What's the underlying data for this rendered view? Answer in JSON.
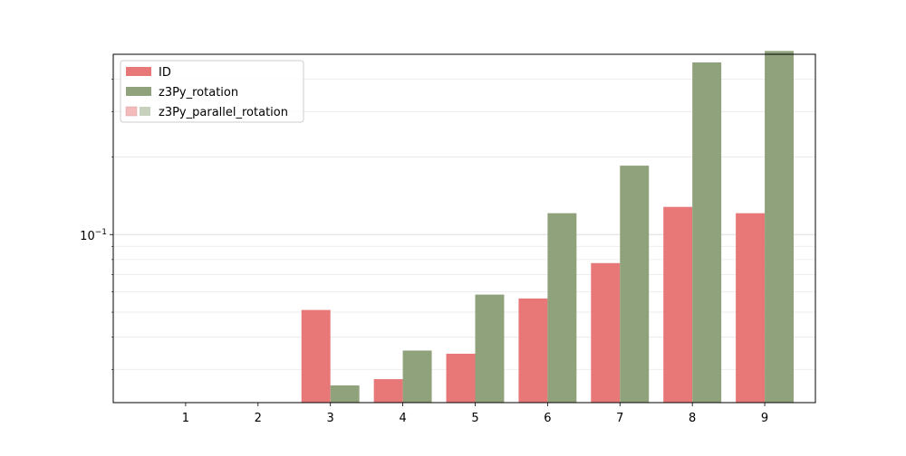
{
  "chart_data": {
    "type": "bar",
    "title": "",
    "xlabel": "",
    "ylabel": "",
    "categories": [
      "1",
      "2",
      "3",
      "4",
      "5",
      "6",
      "7",
      "8",
      "9"
    ],
    "y_scale": "log",
    "ylim": [
      0.0223,
      0.5
    ],
    "y_major_ticks": [
      {
        "value": 0.1,
        "base": "10",
        "exponent": "−1"
      }
    ],
    "y_minor_ticks": [
      0.03,
      0.04,
      0.05,
      0.06,
      0.07,
      0.08,
      0.09,
      0.2,
      0.3,
      0.4
    ],
    "grid": "y-both",
    "legend_position": "top-left",
    "series": [
      {
        "name": "ID",
        "color": "#e87777",
        "values": [
          null,
          null,
          0.051,
          0.0275,
          0.0345,
          0.0565,
          0.0775,
          0.128,
          0.121
        ]
      },
      {
        "name": "z3Py_rotation",
        "color": "#8fa27c",
        "values": [
          null,
          null,
          0.026,
          0.0355,
          0.0585,
          0.121,
          0.185,
          0.465,
          0.515
        ]
      }
    ],
    "legend": [
      {
        "label": "ID",
        "colors": [
          "#e87777"
        ],
        "faded": false
      },
      {
        "label": "z3Py_rotation",
        "colors": [
          "#8fa27c"
        ],
        "faded": false
      },
      {
        "label": "z3Py_parallel_rotation",
        "colors": [
          "#f3bbbb",
          "#c7d1bd"
        ],
        "faded": true
      }
    ]
  }
}
